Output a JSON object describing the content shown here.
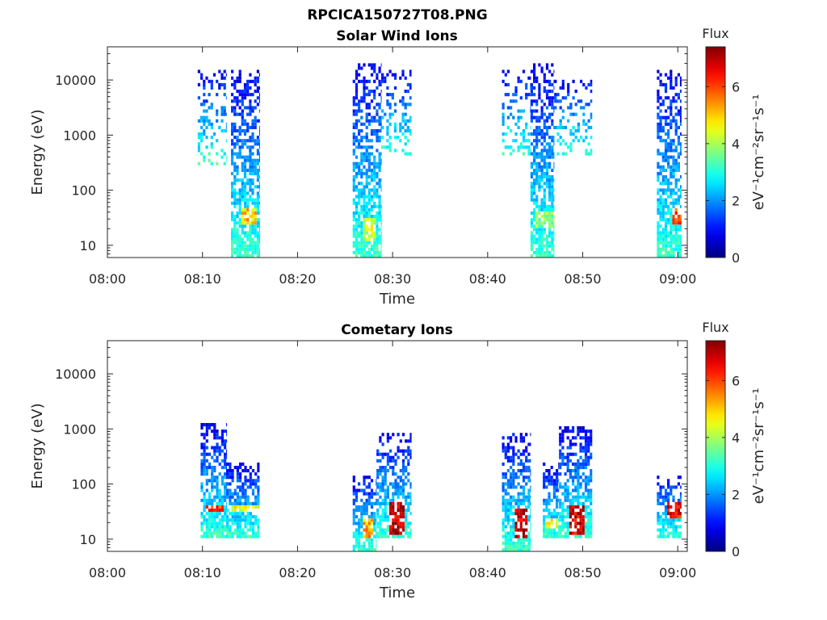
{
  "figure_title": "RPCICA150727T08.PNG",
  "chart_data": [
    {
      "type": "heatmap",
      "title": "Solar Wind Ions",
      "xlabel": "Time",
      "ylabel": "Energy (eV)",
      "x_ticks": [
        "08:00",
        "08:10",
        "08:20",
        "08:30",
        "08:40",
        "08:50",
        "09:00"
      ],
      "xlim_minutes": [
        0,
        61
      ],
      "y_scale": "log",
      "y_ticks": [
        10,
        100,
        1000,
        10000
      ],
      "y_tick_labels": [
        "10",
        "100",
        "1000",
        "10000"
      ],
      "ylim": [
        6,
        40000
      ],
      "colorbar": {
        "title": "Flux",
        "label": "eV⁻¹cm⁻²sr⁻¹s⁻¹",
        "ticks": [
          "0",
          "2",
          "4",
          "6"
        ],
        "range": [
          0,
          7.4
        ],
        "colormap": "jet"
      },
      "grid": false,
      "bursts": [
        {
          "start": 13.0,
          "end": 16.0,
          "emin": 6,
          "emax": 15000,
          "core_start": 14.0,
          "core_end": 15.5,
          "core_emin": 25,
          "core_emax": 45,
          "core_flux": 5.0
        },
        {
          "start": 9.5,
          "end": 12.5,
          "emin": 300,
          "emax": 15000,
          "sparse": true
        },
        {
          "start": 25.8,
          "end": 28.8,
          "emin": 6,
          "emax": 20000,
          "core_start": 26.8,
          "core_end": 28.2,
          "core_emin": 12,
          "core_emax": 30,
          "core_flux": 4.2
        },
        {
          "start": 28.8,
          "end": 32.0,
          "emin": 400,
          "emax": 15000,
          "sparse": true
        },
        {
          "start": 41.5,
          "end": 44.5,
          "emin": 400,
          "emax": 15000,
          "sparse": true
        },
        {
          "start": 44.5,
          "end": 47.0,
          "emin": 6,
          "emax": 20000,
          "core_start": 45.0,
          "core_end": 47.0,
          "core_emin": 20,
          "core_emax": 40,
          "core_flux": 3.8
        },
        {
          "start": 47.0,
          "end": 51.0,
          "emin": 400,
          "emax": 10000,
          "sparse": true
        },
        {
          "start": 57.8,
          "end": 60.4,
          "emin": 6,
          "emax": 15000,
          "core_start": 59.3,
          "core_end": 60.4,
          "core_emin": 25,
          "core_emax": 45,
          "core_flux": 6.0
        }
      ]
    },
    {
      "type": "heatmap",
      "title": "Cometary Ions",
      "xlabel": "Time",
      "ylabel": "Energy (eV)",
      "x_ticks": [
        "08:00",
        "08:10",
        "08:20",
        "08:30",
        "08:40",
        "08:50",
        "09:00"
      ],
      "xlim_minutes": [
        0,
        61
      ],
      "y_scale": "log",
      "y_ticks": [
        10,
        100,
        1000,
        10000
      ],
      "y_tick_labels": [
        "10",
        "100",
        "1000",
        "10000"
      ],
      "ylim": [
        6,
        40000
      ],
      "colorbar": {
        "title": "Flux",
        "label": "eV⁻¹cm⁻²sr⁻¹s⁻¹",
        "ticks": [
          "0",
          "2",
          "4",
          "6"
        ],
        "range": [
          0,
          7.4
        ],
        "colormap": "jet"
      },
      "grid": false,
      "bursts": [
        {
          "start": 9.8,
          "end": 12.5,
          "emin": 10,
          "emax": 1200,
          "core_start": 10.3,
          "core_end": 12.2,
          "core_emin": 30,
          "core_emax": 40,
          "core_flux": 6.0
        },
        {
          "start": 12.5,
          "end": 16.0,
          "emin": 10,
          "emax": 250,
          "core_start": 12.8,
          "core_end": 15.8,
          "core_emin": 30,
          "core_emax": 40,
          "core_flux": 4.5
        },
        {
          "start": 25.8,
          "end": 28.3,
          "emin": 6,
          "emax": 150,
          "core_start": 26.8,
          "core_end": 27.8,
          "core_emin": 10,
          "core_emax": 25,
          "core_flux": 5.2
        },
        {
          "start": 28.3,
          "end": 32.0,
          "emin": 10,
          "emax": 800,
          "core_start": 29.5,
          "core_end": 31.0,
          "core_emin": 12,
          "core_emax": 45,
          "core_flux": 7.0
        },
        {
          "start": 41.5,
          "end": 44.5,
          "emin": 6,
          "emax": 900,
          "core_start": 42.8,
          "core_end": 44.0,
          "core_emin": 10,
          "core_emax": 35,
          "core_flux": 7.0
        },
        {
          "start": 45.8,
          "end": 47.5,
          "emin": 10,
          "emax": 250,
          "core_start": 46.0,
          "core_end": 47.4,
          "core_emin": 15,
          "core_emax": 25,
          "core_flux": 4.8
        },
        {
          "start": 47.5,
          "end": 51.0,
          "emin": 10,
          "emax": 1100,
          "core_start": 48.5,
          "core_end": 50.2,
          "core_emin": 12,
          "core_emax": 40,
          "core_flux": 6.8
        },
        {
          "start": 57.8,
          "end": 60.4,
          "emin": 10,
          "emax": 150,
          "core_start": 58.8,
          "core_end": 60.4,
          "core_emin": 25,
          "core_emax": 45,
          "core_flux": 6.5
        }
      ]
    }
  ]
}
